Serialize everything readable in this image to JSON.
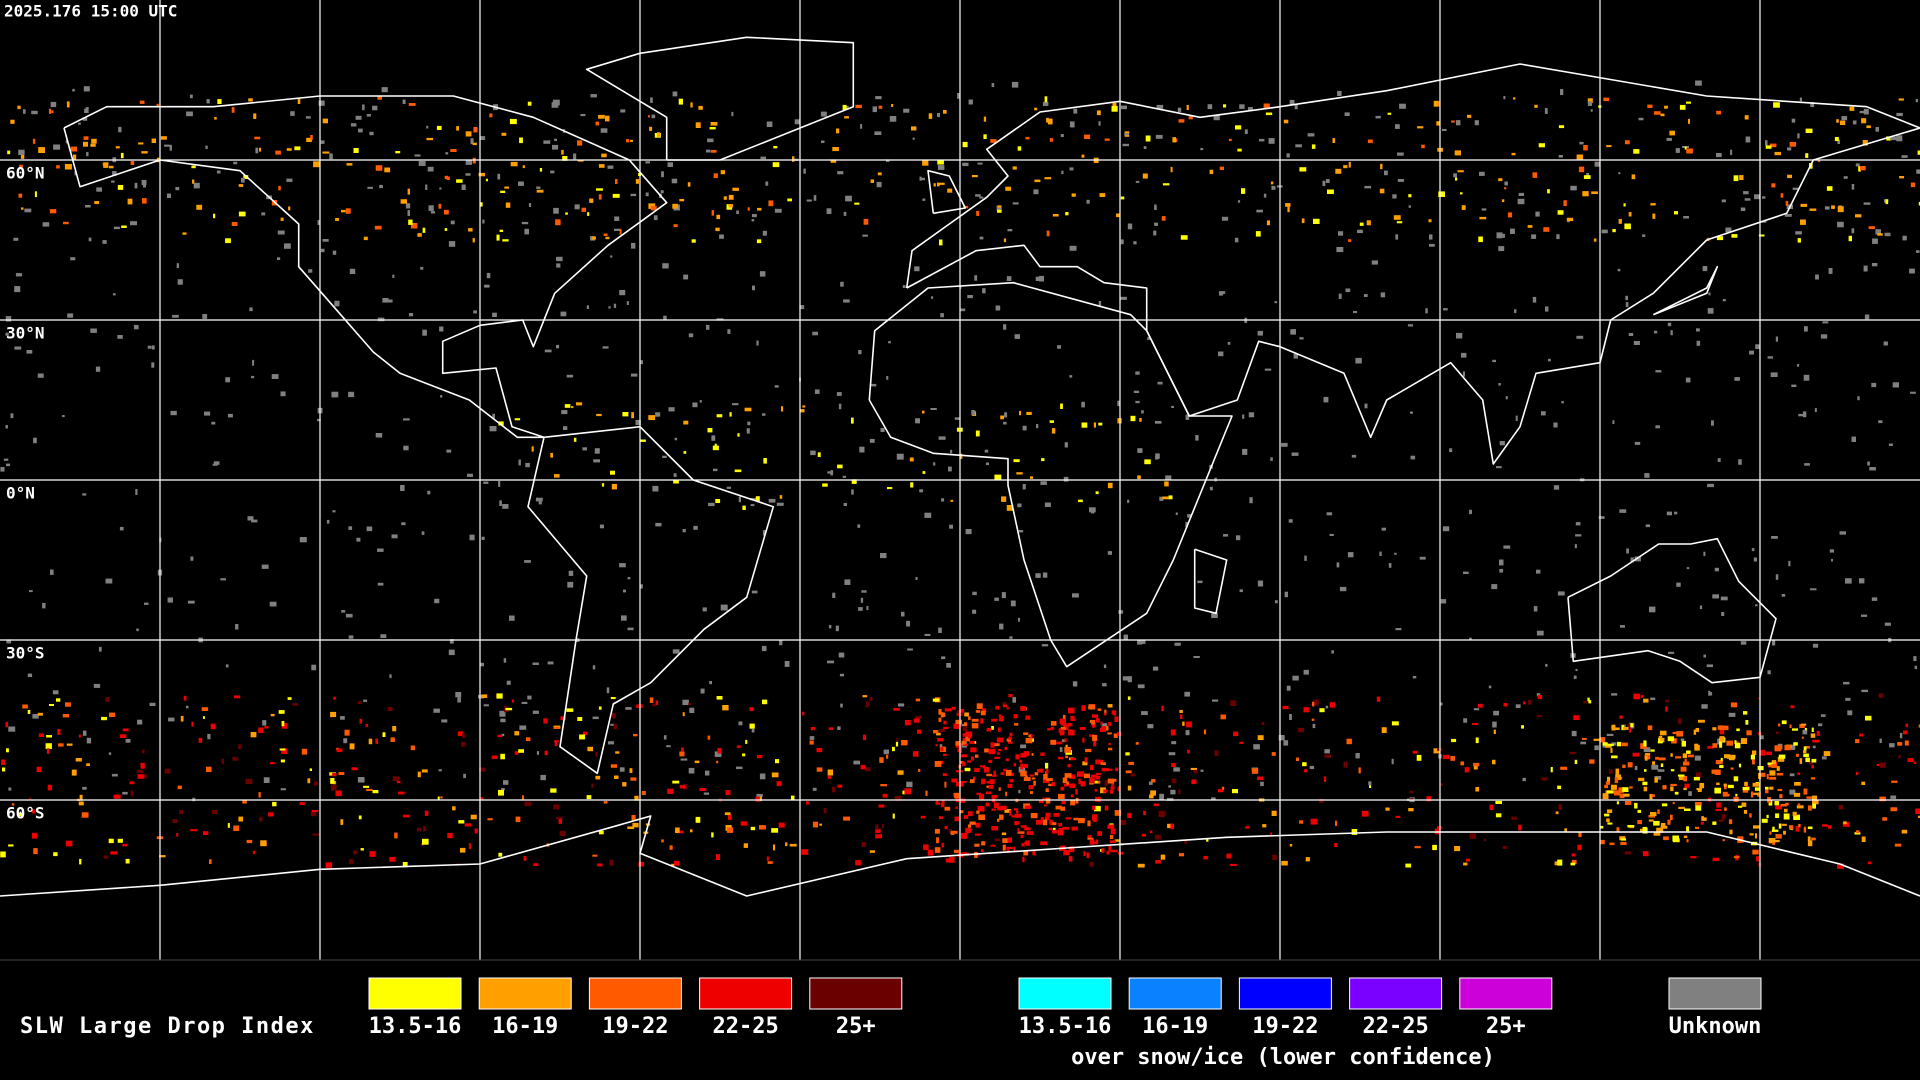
{
  "header": {
    "timestamp": "2025.176 15:00 UTC"
  },
  "map": {
    "latitude_labels": [
      "60°N",
      "30°N",
      "0°N",
      "30°S",
      "60°S"
    ]
  },
  "legend": {
    "title": "SLW Large Drop Index",
    "liquid": [
      {
        "label": "13.5-16",
        "color": "#ffff00"
      },
      {
        "label": "16-19",
        "color": "#ff9f00"
      },
      {
        "label": "19-22",
        "color": "#ff5a00"
      },
      {
        "label": "22-25",
        "color": "#ee0000"
      },
      {
        "label": "25+",
        "color": "#6a0000"
      }
    ],
    "snow_ice": [
      {
        "label": "13.5-16",
        "color": "#00ffff"
      },
      {
        "label": "16-19",
        "color": "#0a82ff"
      },
      {
        "label": "19-22",
        "color": "#0000ff"
      },
      {
        "label": "22-25",
        "color": "#7a00ff"
      },
      {
        "label": "25+",
        "color": "#cc00d8"
      }
    ],
    "snow_ice_caption": "over snow/ice (lower confidence)",
    "unknown": {
      "label": "Unknown",
      "color": "#808080"
    }
  }
}
